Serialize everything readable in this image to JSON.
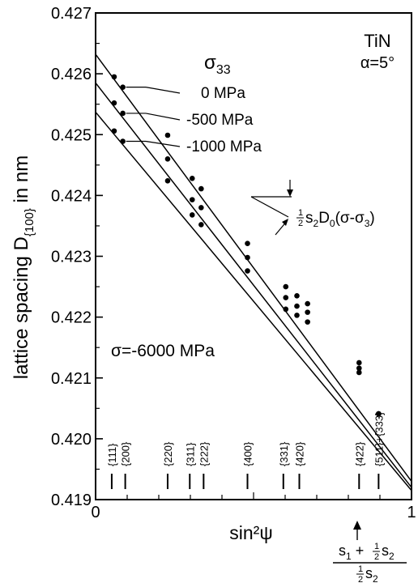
{
  "chart_data": {
    "type": "line",
    "title": "TiN",
    "subtitle": "α=5°",
    "xlabel": "sin²ψ",
    "ylabel_main": "lattice spacing D",
    "ylabel_sub": "{100}",
    "ylabel_tail": " in nm",
    "xlim": [
      0,
      1
    ],
    "ylim": [
      0.419,
      0.427
    ],
    "y_ticks": [
      "0.419",
      "0.420",
      "0.421",
      "0.422",
      "0.423",
      "0.424",
      "0.425",
      "0.426",
      "0.427"
    ],
    "x_ticks": [
      "0",
      "1"
    ],
    "legend_title_main": "σ",
    "legend_title_sub": "33",
    "stress_label": "σ=-6000 MPa",
    "series": [
      {
        "name": "0 MPa",
        "intercept": 0.42632,
        "x_end": 1.0,
        "y_end": 0.4193,
        "points": [
          [
            0.0588,
            0.42595
          ],
          [
            0.0862,
            0.42578
          ],
          [
            0.2281,
            0.42499
          ],
          [
            0.3058,
            0.42428
          ],
          [
            0.3342,
            0.42411
          ],
          [
            0.4808,
            0.42321
          ],
          [
            0.602,
            0.4225
          ],
          [
            0.6372,
            0.42235
          ],
          [
            0.6709,
            0.42222
          ],
          [
            0.8341,
            0.42125
          ],
          [
            0.8958,
            0.42041
          ]
        ]
      },
      {
        "name": "-500 MPa",
        "intercept": 0.42585,
        "x_end": 1.0,
        "y_end": 0.4192,
        "points": [
          [
            0.0588,
            0.42552
          ],
          [
            0.0862,
            0.42535
          ],
          [
            0.2281,
            0.4246
          ],
          [
            0.3058,
            0.42393
          ],
          [
            0.3342,
            0.4238
          ],
          [
            0.4808,
            0.42298
          ],
          [
            0.602,
            0.42232
          ],
          [
            0.6372,
            0.42218
          ],
          [
            0.6709,
            0.42208
          ],
          [
            0.8341,
            0.42116
          ],
          [
            0.8958,
            0.42041
          ]
        ]
      },
      {
        "name": "-1000 MPa",
        "intercept": 0.42537,
        "x_end": 1.0,
        "y_end": 0.41915,
        "points": [
          [
            0.0588,
            0.42506
          ],
          [
            0.0862,
            0.42489
          ],
          [
            0.2281,
            0.42424
          ],
          [
            0.3058,
            0.42368
          ],
          [
            0.3342,
            0.42352
          ],
          [
            0.4808,
            0.42276
          ],
          [
            0.602,
            0.42213
          ],
          [
            0.6372,
            0.42203
          ],
          [
            0.6709,
            0.42192
          ],
          [
            0.8341,
            0.42109
          ],
          [
            0.8958,
            0.42041
          ]
        ]
      }
    ],
    "reflections": [
      {
        "label": "{111}",
        "x": 0.0588
      },
      {
        "label": "{200}",
        "x": 0.0862
      },
      {
        "label": "{220}",
        "x": 0.2281
      },
      {
        "label": "{311}",
        "x": 0.3058
      },
      {
        "label": "{222}",
        "x": 0.3342
      },
      {
        "label": "{400}",
        "x": 0.4808
      },
      {
        "label": "{331}",
        "x": 0.602
      },
      {
        "label": "{420}",
        "x": 0.6372
      },
      {
        "label": "{422}",
        "x": 0.8341
      },
      {
        "label": "{511}+{333}",
        "x": 0.8958
      }
    ],
    "annotation_slope_pre": "s",
    "annotation_slope_sub": "2",
    "annotation_slope_mid": "D",
    "annotation_slope_sub2": "0",
    "annotation_slope_post": "(σ-σ",
    "annotation_slope_sub3": "3",
    "annotation_slope_end": ")",
    "half": "1 2",
    "marker_num_a": "s",
    "marker_num_a_sub": "1",
    "marker_num_plus": " + ",
    "marker_num_b": "s",
    "marker_num_b_sub": "2",
    "marker_den": "s",
    "marker_den_sub": "2",
    "colors": {
      "line": "#000000",
      "background": "#ffffff"
    }
  }
}
